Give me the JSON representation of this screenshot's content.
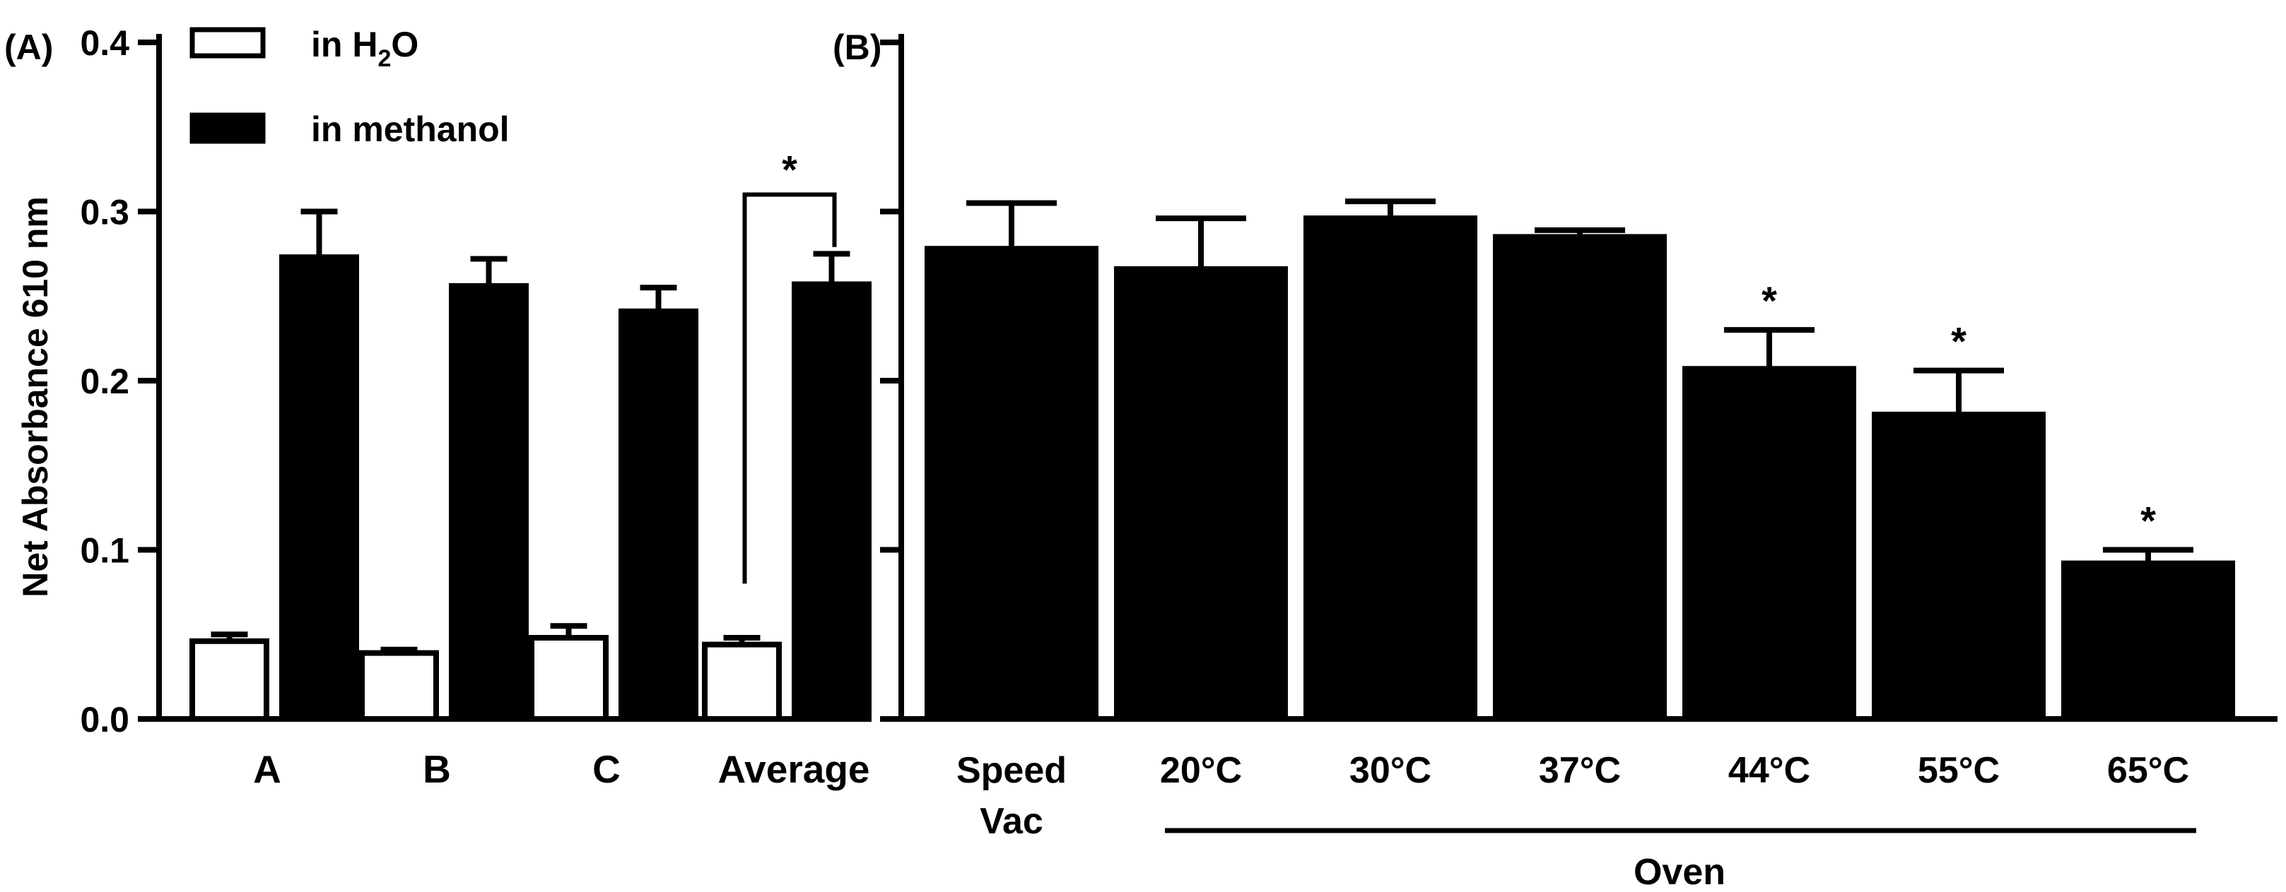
{
  "chart_data": [
    {
      "panel": "A",
      "panel_label": "(A)",
      "type": "bar",
      "ylabel": "Net Absorbance 610 nm",
      "ylim": [
        0,
        0.4
      ],
      "yticks": [
        "0.0",
        "0.1",
        "0.2",
        "0.3",
        "0.4"
      ],
      "ytick_values": [
        0,
        0.1,
        0.2,
        0.3,
        0.4
      ],
      "categories": [
        "A",
        "B",
        "C",
        "Average"
      ],
      "series": [
        {
          "name": "in H2O",
          "legend_main": "in H",
          "legend_sub": "2",
          "legend_tail": "O",
          "color": "#ffffff",
          "values": [
            0.046,
            0.039,
            0.048,
            0.044
          ],
          "errors": [
            0.004,
            0.002,
            0.007,
            0.004
          ]
        },
        {
          "name": "in methanol",
          "legend_main": "in methanol",
          "color": "#000000",
          "values": [
            0.273,
            0.256,
            0.241,
            0.257
          ],
          "errors": [
            0.027,
            0.016,
            0.014,
            0.018
          ]
        }
      ],
      "significance": {
        "category": "Average",
        "label": "*",
        "bracket_low": 0.08,
        "bracket_high": 0.31
      }
    },
    {
      "panel": "B",
      "panel_label": "(B)",
      "type": "bar",
      "ylim": [
        0,
        0.4
      ],
      "ytick_values": [
        0,
        0.1,
        0.2,
        0.3,
        0.4
      ],
      "categories": [
        {
          "line1": "Speed",
          "line2": "Vac"
        },
        {
          "line1": "20°C"
        },
        {
          "line1": "30°C"
        },
        {
          "line1": "37°C"
        },
        {
          "line1": "44°C"
        },
        {
          "line1": "55°C"
        },
        {
          "line1": "65°C"
        }
      ],
      "values": [
        0.278,
        0.266,
        0.296,
        0.285,
        0.207,
        0.18,
        0.092
      ],
      "errors": [
        0.027,
        0.03,
        0.01,
        0.004,
        0.023,
        0.026,
        0.008
      ],
      "significant": [
        false,
        false,
        false,
        false,
        true,
        true,
        true
      ],
      "significance_label": "*",
      "group_label": "Oven",
      "group_range": [
        1,
        6
      ]
    }
  ]
}
